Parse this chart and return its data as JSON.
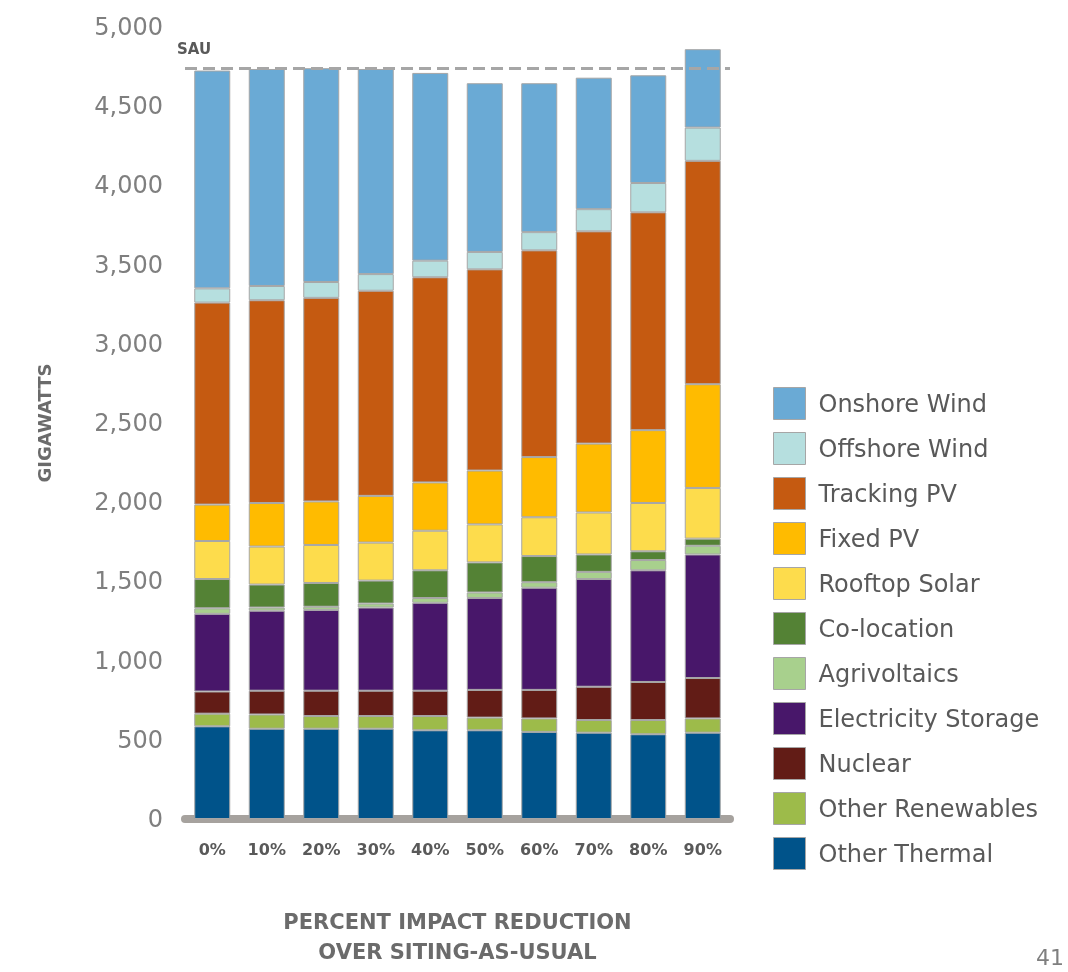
{
  "chart_data": {
    "type": "bar",
    "stacked": true,
    "xlabel": "PERCENT IMPACT REDUCTION OVER SITING-AS-USUAL",
    "ylabel": "GIGAWATTS",
    "categories": [
      "0%",
      "10%",
      "20%",
      "30%",
      "40%",
      "50%",
      "60%",
      "70%",
      "80%",
      "90%"
    ],
    "series": [
      {
        "name": "Other Thermal",
        "color": "#00538a",
        "values": [
          585,
          570,
          570,
          570,
          560,
          560,
          550,
          545,
          535,
          545
        ]
      },
      {
        "name": "Other Renewables",
        "color": "#9dbb4a",
        "values": [
          80,
          90,
          80,
          80,
          90,
          80,
          85,
          80,
          90,
          90
        ]
      },
      {
        "name": "Nuclear",
        "color": "#621c16",
        "values": [
          140,
          150,
          160,
          160,
          160,
          175,
          180,
          210,
          240,
          255
        ]
      },
      {
        "name": "Electricity Storage",
        "color": "#48176a",
        "values": [
          490,
          505,
          510,
          525,
          555,
          580,
          645,
          680,
          705,
          780
        ]
      },
      {
        "name": "Agrivoltaics",
        "color": "#a8d08d",
        "values": [
          35,
          20,
          20,
          25,
          30,
          35,
          35,
          45,
          65,
          55
        ]
      },
      {
        "name": "Co-location",
        "color": "#548235",
        "values": [
          185,
          145,
          150,
          145,
          175,
          190,
          165,
          110,
          55,
          45
        ]
      },
      {
        "name": "Rooftop Solar",
        "color": "#fddc4c",
        "values": [
          240,
          240,
          240,
          240,
          250,
          240,
          245,
          265,
          305,
          320
        ]
      },
      {
        "name": "Fixed PV",
        "color": "#ffbb00",
        "values": [
          230,
          275,
          275,
          295,
          305,
          340,
          380,
          435,
          460,
          655
        ]
      },
      {
        "name": "Tracking PV",
        "color": "#c55a11",
        "values": [
          1275,
          1280,
          1285,
          1295,
          1295,
          1270,
          1305,
          1340,
          1375,
          1410
        ]
      },
      {
        "name": "Offshore Wind",
        "color": "#b6dfdf",
        "values": [
          90,
          90,
          100,
          105,
          105,
          110,
          115,
          140,
          185,
          210
        ]
      },
      {
        "name": "Onshore Wind",
        "color": "#6aaad5",
        "values": [
          1375,
          1370,
          1350,
          1295,
          1185,
          1065,
          940,
          830,
          680,
          495
        ]
      }
    ],
    "ylim": [
      0,
      5000
    ],
    "yticks": [
      0,
      500,
      {
        "value": 1000,
        "label": "1,000"
      },
      {
        "value": 1500,
        "label": "1,500"
      },
      {
        "value": 2000,
        "label": "2,000"
      },
      {
        "value": 2500,
        "label": "2,500"
      },
      {
        "value": 3000,
        "label": "3,000"
      },
      {
        "value": 3500,
        "label": "3,500"
      },
      {
        "value": 4000,
        "label": "4,000"
      },
      {
        "value": 4500,
        "label": "4,500"
      },
      {
        "value": 5000,
        "label": "5,000"
      }
    ],
    "ref_lines": [
      {
        "axis": "y",
        "value": 4740,
        "label": "SAU",
        "color": "#a6a6a6",
        "line_style": "dashed"
      }
    ],
    "annotations": [
      "41"
    ],
    "grid": false,
    "legend": "right"
  }
}
